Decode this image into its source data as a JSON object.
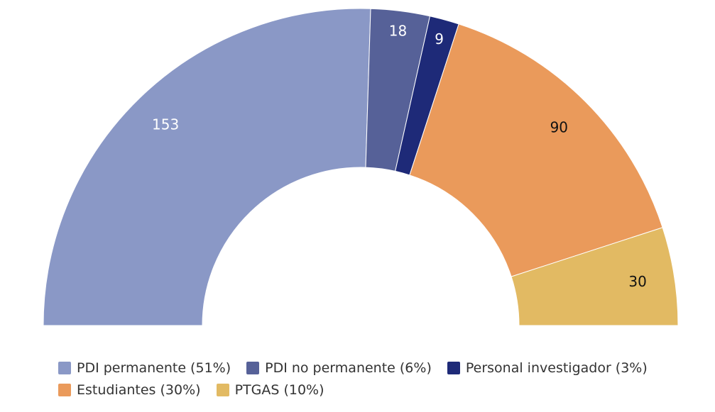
{
  "chart_data": {
    "type": "pie",
    "variant": "semicircle-donut",
    "categories": [
      "PDI permanente",
      "PDI no permanente",
      "Personal investigador",
      "Estudiantes",
      "PTGAS"
    ],
    "values": [
      153,
      18,
      9,
      90,
      30
    ],
    "data_labels": [
      "153",
      "18",
      "9",
      "90",
      "30"
    ],
    "colors": [
      "#8a98c6",
      "#566198",
      "#1e2a78",
      "#ea9a5b",
      "#e2ba63"
    ],
    "label_colors": [
      "#ffffff",
      "#ffffff",
      "#ffffff",
      "#111111",
      "#111111"
    ],
    "legend": {
      "placement": "bottom",
      "entries": [
        "PDI permanente (51%)",
        "PDI no permanente (6%)",
        "Personal investigador (3%)",
        "Estudiantes (30%)",
        "PTGAS (10%)"
      ]
    }
  }
}
